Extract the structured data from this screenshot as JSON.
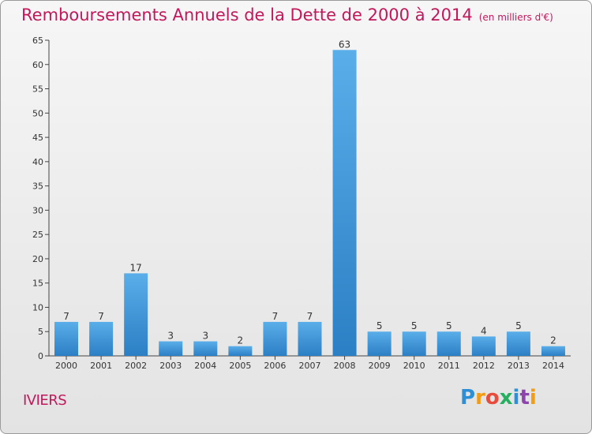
{
  "title": "Remboursements Annuels de la Dette de 2000 à 2014",
  "subtitle": "(en milliers d'€)",
  "commune": "IVIERS",
  "logo": "Proxiti",
  "colors": {
    "bar_light": "#5aaee9",
    "bar_dark": "#2b7fc4",
    "title": "#c2185b"
  },
  "chart_data": {
    "type": "bar",
    "title": "Remboursements Annuels de la Dette de 2000 à 2014",
    "subtitle": "(en milliers d'€)",
    "categories": [
      "2000",
      "2001",
      "2002",
      "2003",
      "2004",
      "2005",
      "2006",
      "2007",
      "2008",
      "2009",
      "2010",
      "2011",
      "2012",
      "2013",
      "2014"
    ],
    "values": [
      7,
      7,
      17,
      3,
      3,
      2,
      7,
      7,
      63,
      5,
      5,
      5,
      4,
      5,
      2
    ],
    "ylim": [
      0,
      65
    ],
    "yticks": [
      0,
      5,
      10,
      15,
      20,
      25,
      30,
      35,
      40,
      45,
      50,
      55,
      60,
      65
    ],
    "grid": false,
    "data_labels": true
  }
}
